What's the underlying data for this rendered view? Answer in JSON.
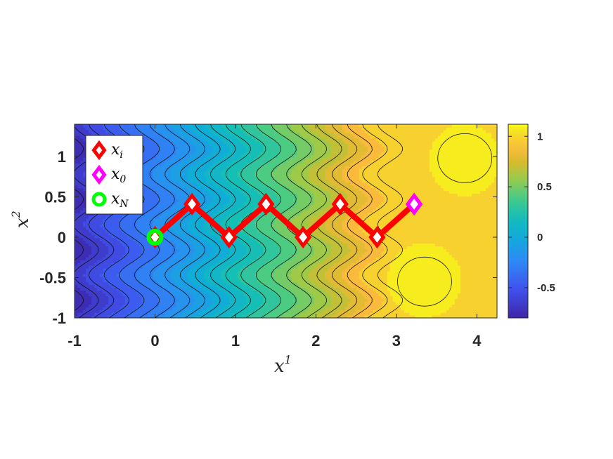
{
  "chart_data": {
    "type": "contour",
    "x_axis": {
      "label": "x",
      "label_superscript": "1",
      "range": [
        -1,
        4.25
      ],
      "ticks": [
        -1,
        0,
        1,
        2,
        3,
        4
      ],
      "tick_labels": [
        "-1",
        "0",
        "1",
        "2",
        "3",
        "4"
      ]
    },
    "y_axis": {
      "label": "x",
      "label_superscript": "2",
      "range": [
        -1,
        1.4
      ],
      "ticks": [
        -1,
        -0.5,
        0,
        0.5,
        1
      ],
      "tick_labels": [
        "-1",
        "-0.5",
        "0",
        "0.5",
        "1"
      ]
    },
    "colorbar": {
      "range": [
        -0.8,
        1.12
      ],
      "ticks": [
        -0.5,
        0,
        0.5,
        1
      ],
      "tick_labels": [
        "-0.5",
        "0",
        "0.5",
        "1"
      ],
      "colormap": "parula",
      "location": "right"
    },
    "field": {
      "description_values": {
        "circle_centers": [
          [
            3.85,
            0.98
          ],
          [
            3.35,
            -0.55
          ]
        ],
        "circle_radius": 0.32
      }
    },
    "series": [
      {
        "name": "x_i",
        "marker": "diamond",
        "color": "#ff0000",
        "points": [
          [
            0,
            0
          ],
          [
            0.46,
            0.41
          ],
          [
            0.92,
            0
          ],
          [
            1.38,
            0.41
          ],
          [
            1.84,
            0
          ],
          [
            2.3,
            0.41
          ],
          [
            2.76,
            0
          ],
          [
            3.22,
            0.41
          ]
        ]
      },
      {
        "name": "x_0",
        "marker": "diamond",
        "color": "#ff00ff",
        "points": [
          [
            3.22,
            0.41
          ]
        ]
      },
      {
        "name": "x_N",
        "marker": "circle",
        "color": "#00ff00",
        "points": [
          [
            0,
            0
          ]
        ]
      }
    ],
    "legend": {
      "location": "top-left",
      "entries": [
        {
          "symbol": "x",
          "sub": "i",
          "marker": "diamond",
          "color": "#ff0000"
        },
        {
          "symbol": "x",
          "sub": "0",
          "marker": "diamond",
          "color": "#ff00ff"
        },
        {
          "symbol": "x",
          "sub": "N",
          "marker": "circle",
          "color": "#00ff00"
        }
      ]
    }
  }
}
